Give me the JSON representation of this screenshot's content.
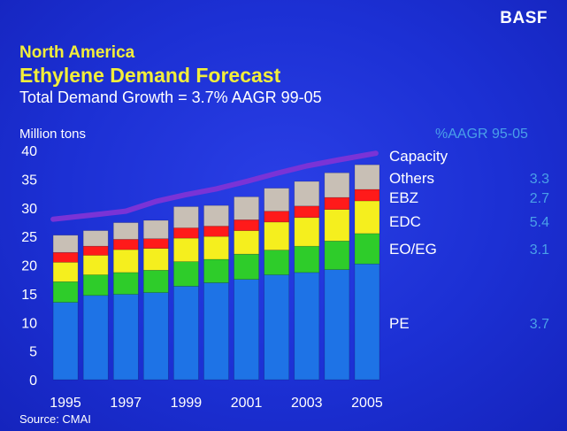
{
  "logo": "BASF",
  "title_line1": "North America",
  "title_line2": "Ethylene Demand Forecast",
  "subtitle": "Total Demand Growth = 3.7% AAGR 99-05",
  "y_unit": "Million tons",
  "source": "Source: CMAI",
  "aagr_header": "%AAGR 95-05",
  "colors": {
    "background": "#1c30d4",
    "title": "#f2ee3a",
    "PE": "#1e73e6",
    "EO/EG": "#2ecc2a",
    "EDC": "#f5ef1e",
    "EBZ": "#ff1a1a",
    "Others": "#c8bfb5",
    "Capacity": "#7a33d6",
    "aagr_text": "#4aa0e8"
  },
  "chart_data": {
    "type": "bar",
    "stacked": true,
    "categories": [
      "1995",
      "1996",
      "1997",
      "1998",
      "1999",
      "2000",
      "2001",
      "2002",
      "2003",
      "2004",
      "2005"
    ],
    "x_tick_labels": [
      "1995",
      "1997",
      "1999",
      "2001",
      "2003",
      "2005"
    ],
    "ylim": [
      0,
      40
    ],
    "yticks": [
      0,
      5,
      10,
      15,
      20,
      25,
      30,
      35,
      40
    ],
    "series": [
      {
        "name": "PE",
        "values": [
          13.5,
          14.7,
          14.9,
          15.2,
          16.3,
          16.9,
          17.5,
          18.3,
          18.7,
          19.2,
          20.2
        ],
        "aagr": "3.7"
      },
      {
        "name": "EO/EG",
        "values": [
          3.6,
          3.6,
          3.8,
          3.9,
          4.3,
          4.1,
          4.4,
          4.3,
          4.6,
          5.0,
          5.3
        ],
        "aagr": "3.1"
      },
      {
        "name": "EDC",
        "values": [
          3.4,
          3.4,
          4.0,
          3.8,
          4.1,
          4.0,
          4.1,
          4.9,
          5.0,
          5.5,
          5.7
        ],
        "aagr": "5.4"
      },
      {
        "name": "EBZ",
        "values": [
          1.7,
          1.6,
          1.8,
          1.7,
          1.8,
          1.8,
          1.9,
          1.9,
          2.0,
          2.1,
          2.0
        ],
        "aagr": "2.7"
      },
      {
        "name": "Others",
        "values": [
          3.0,
          2.7,
          2.9,
          3.2,
          3.7,
          3.6,
          4.0,
          4.0,
          4.3,
          4.3,
          4.3
        ],
        "aagr": "3.3"
      }
    ],
    "capacity_line": {
      "name": "Capacity",
      "values": [
        28.0,
        28.8,
        29.4,
        31.1,
        32.3,
        33.3,
        34.6,
        36.0,
        37.3,
        38.3,
        39.5
      ]
    },
    "legend": [
      "Capacity",
      "Others",
      "EBZ",
      "EDC",
      "EO/EG",
      "PE"
    ]
  }
}
